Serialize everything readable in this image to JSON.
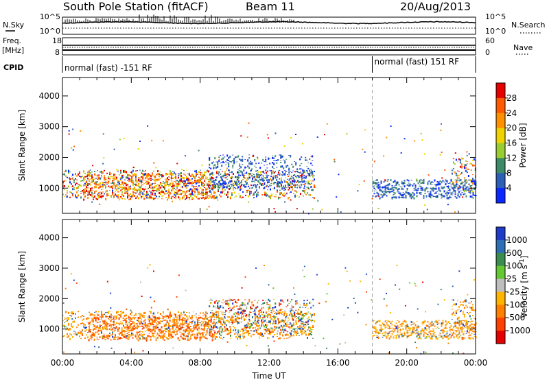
{
  "header": {
    "station": "South Pole Station (fitACF)",
    "beam": "Beam 11",
    "date": "20/Aug/2013"
  },
  "status_panels": {
    "nsky_label": "N.Sky",
    "nsearch_label": "N.Search",
    "noise_top_left": "10^5",
    "noise_bottom_left": "10^0",
    "noise_top_right": "10^5",
    "noise_bottom_right": "10^0",
    "freq_label": "Freq.",
    "freq_unit": "[MHz]",
    "freq_top": "18",
    "freq_bottom": "8",
    "nave_label": "Nave",
    "nave_top": "60",
    "nave_bottom": "0",
    "cpid_label": "CPID",
    "cpid_mode_1": "normal (fast) -151 RF",
    "cpid_mode_2": "normal (fast) 151 RF",
    "cpid_change_time_h": 18.0
  },
  "chart_data": [
    {
      "type": "heatmap",
      "name": "power",
      "ylabel": "Slant Range [km]",
      "ylim": [
        180,
        4600
      ],
      "xlim": [
        0,
        24
      ],
      "yticks": [
        1000,
        2000,
        3000,
        4000
      ],
      "colorbar": {
        "label": "Power [dB]",
        "ticks": [
          "4",
          "8",
          "12",
          "16",
          "20",
          "24",
          "28"
        ],
        "colors": [
          "#0a28ff",
          "#2e5fb8",
          "#3d8a66",
          "#9acd32",
          "#f0d200",
          "#ff9000",
          "#ff5a00",
          "#e60000"
        ]
      },
      "features": [
        {
          "start_h": 0.0,
          "end_h": 14.6,
          "range_lo": 700,
          "range_hi": 1600,
          "level": "mixed"
        },
        {
          "start_h": 1.2,
          "end_h": 8.8,
          "range_lo": 650,
          "range_hi": 1500,
          "level": "high"
        },
        {
          "start_h": 8.5,
          "end_h": 14.5,
          "range_lo": 1000,
          "range_hi": 2100,
          "level": "low"
        },
        {
          "start_h": 18.0,
          "end_h": 24.0,
          "range_lo": 700,
          "range_hi": 1300,
          "level": "low"
        },
        {
          "start_h": 22.6,
          "end_h": 24.0,
          "range_lo": 900,
          "range_hi": 2000,
          "level": "mixed"
        }
      ]
    },
    {
      "type": "heatmap",
      "name": "velocity",
      "ylabel": "Slant Range [km]",
      "xlabel": "Time UT",
      "ylim": [
        180,
        4600
      ],
      "xlim": [
        0,
        24
      ],
      "xticks": [
        "00:00",
        "04:00",
        "08:00",
        "12:00",
        "16:00",
        "20:00",
        "00:00"
      ],
      "yticks": [
        1000,
        2000,
        3000,
        4000
      ],
      "colorbar": {
        "label": "Velocity [m s^-1]",
        "ticks": [
          "1000",
          "500",
          "100",
          "25",
          "-25",
          "-100",
          "-500",
          "-1000"
        ],
        "colors": [
          "#1e3cc8",
          "#2d6eb4",
          "#3c8c50",
          "#64c832",
          "#bebebe",
          "#ffb400",
          "#ff8000",
          "#ff4000",
          "#e60000"
        ]
      },
      "features": [
        {
          "start_h": 0.0,
          "end_h": 14.6,
          "range_lo": 700,
          "range_hi": 1600,
          "level": "negative"
        },
        {
          "start_h": 1.5,
          "end_h": 8.8,
          "range_lo": 650,
          "range_hi": 1500,
          "level": "strong-negative"
        },
        {
          "start_h": 8.5,
          "end_h": 14.5,
          "range_lo": 900,
          "range_hi": 2000,
          "level": "mixed"
        },
        {
          "start_h": 18.0,
          "end_h": 24.0,
          "range_lo": 700,
          "range_hi": 1300,
          "level": "negative"
        },
        {
          "start_h": 22.6,
          "end_h": 24.0,
          "range_lo": 900,
          "range_hi": 2000,
          "level": "negative"
        }
      ]
    }
  ]
}
